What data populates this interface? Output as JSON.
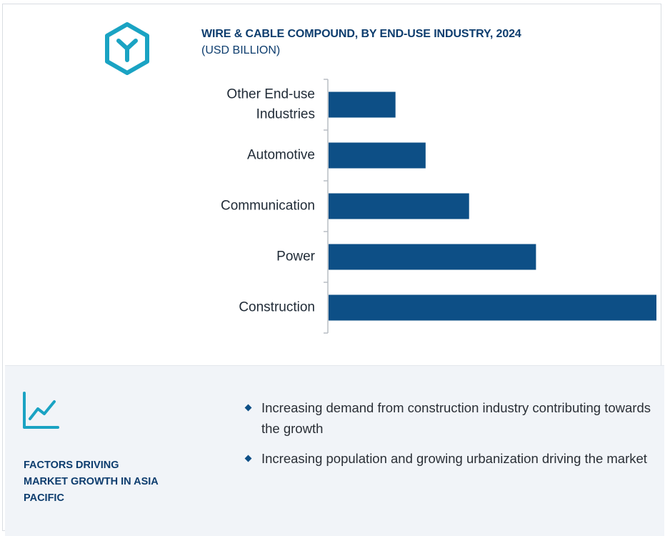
{
  "header": {
    "title": "WIRE & CABLE COMPOUND,  BY END-USE INDUSTRY, 2024",
    "subtitle": "(USD BILLION)",
    "logo_icon": "hexagon-y-logo-icon",
    "logo_color": "#1aa3c3"
  },
  "chart_data": {
    "type": "bar",
    "orientation": "horizontal",
    "categories": [
      "Other End-use Industries",
      "Automotive",
      "Communication",
      "Power",
      "Construction"
    ],
    "category_lines": [
      [
        "Other End-use",
        "Industries"
      ],
      [
        "Automotive"
      ],
      [
        "Communication"
      ],
      [
        "Power"
      ],
      [
        "Construction"
      ]
    ],
    "values": [
      1.0,
      1.45,
      2.1,
      3.1,
      4.9
    ],
    "xlim": [
      0,
      4.9
    ],
    "title": "WIRE & CABLE COMPOUND,  BY END-USE INDUSTRY, 2024",
    "subtitle": "(USD BILLION)",
    "grid": false,
    "bar_color": "#0d4f86"
  },
  "factors": {
    "icon": "line-chart-growth-icon",
    "title": "FACTORS DRIVING\nMARKET GROWTH IN ASIA\nPACIFIC",
    "items": [
      "Increasing demand from construction industry contributing towards the growth",
      "Increasing population and growing urbanization driving the market"
    ]
  }
}
